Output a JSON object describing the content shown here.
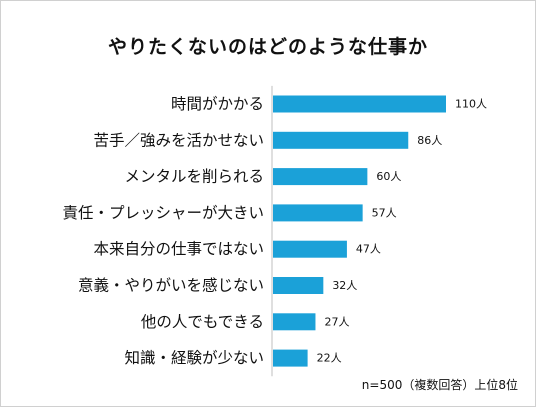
{
  "chart_data": {
    "type": "bar",
    "orientation": "horizontal",
    "title": "やりたくないのはどのような仕事か",
    "categories": [
      "時間がかかる",
      "苦手／強みを活かせない",
      "メンタルを削られる",
      "責任・プレッシャーが大きい",
      "本来自分の仕事ではない",
      "意義・やりがいを感じない",
      "他の人でもできる",
      "知識・経験が少ない"
    ],
    "values": [
      110,
      86,
      60,
      57,
      47,
      32,
      27,
      22
    ],
    "value_labels": [
      "110人",
      "86人",
      "60人",
      "57人",
      "47人",
      "32人",
      "27人",
      "22人"
    ],
    "bar_color": "#1ba1d8",
    "grid": false,
    "legend": "none"
  },
  "note": "n=500（複数回答）上位8位"
}
